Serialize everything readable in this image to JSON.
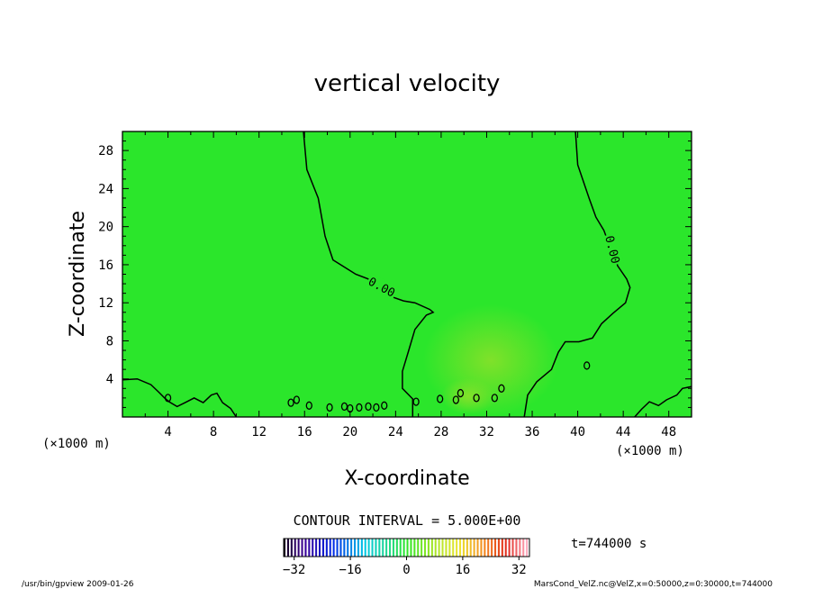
{
  "chart_data": {
    "type": "heatmap",
    "title": "vertical velocity",
    "xlabel": "X-coordinate",
    "ylabel": "Z-coordinate",
    "x_unit": "(×1000 m)",
    "y_unit": "(×1000 m)",
    "xlim": [
      0,
      50
    ],
    "ylim": [
      0,
      30
    ],
    "xticks": [
      4,
      8,
      12,
      16,
      20,
      24,
      28,
      32,
      36,
      40,
      44,
      48
    ],
    "yticks": [
      4,
      8,
      12,
      16,
      20,
      24,
      28
    ],
    "contour_label": "0.00",
    "contour_interval_text": "CONTOUR INTERVAL = 5.000E+00",
    "time_text": "t=744000 s",
    "colorbar": {
      "range": [
        -35,
        35
      ],
      "ticks": [
        -32,
        -16,
        0,
        16,
        32
      ]
    },
    "footer_left": "/usr/bin/gpview   2009-01-26",
    "footer_right": "MarsCond_VelZ.nc@VelZ,x=0:50000,z=0:30000,t=744000",
    "field_background_color": "#2be62b",
    "contour_lines": [
      {
        "name": "left",
        "points": [
          [
            15.9,
            30
          ],
          [
            16.2,
            26
          ],
          [
            17.2,
            23
          ],
          [
            17.8,
            19
          ],
          [
            18.5,
            16.5
          ],
          [
            20.5,
            15
          ],
          [
            21.6,
            14.5
          ],
          [
            22.3,
            13.6
          ],
          [
            23.5,
            12.7
          ],
          [
            24.7,
            12.2
          ],
          [
            25.7,
            12.0
          ],
          [
            27.0,
            11.3
          ],
          [
            27.3,
            11.0
          ],
          [
            26.7,
            10.7
          ],
          [
            25.7,
            9.2
          ],
          [
            25.1,
            6.8
          ],
          [
            24.6,
            4.8
          ],
          [
            24.6,
            3.0
          ],
          [
            25.5,
            1.9
          ],
          [
            25.5,
            0
          ]
        ]
      },
      {
        "name": "right",
        "points": [
          [
            39.8,
            30
          ],
          [
            40.0,
            26.5
          ],
          [
            41.0,
            23.0
          ],
          [
            41.6,
            21.0
          ],
          [
            42.3,
            19.6
          ],
          [
            42.7,
            18.3
          ],
          [
            43.3,
            17.0
          ],
          [
            43.5,
            15.9
          ],
          [
            44.3,
            14.5
          ],
          [
            44.6,
            13.6
          ],
          [
            44.2,
            12.0
          ],
          [
            43.1,
            10.9
          ],
          [
            42.1,
            9.8
          ],
          [
            41.3,
            8.3
          ],
          [
            40.1,
            7.9
          ],
          [
            38.9,
            7.9
          ],
          [
            38.3,
            6.8
          ],
          [
            37.7,
            5.0
          ],
          [
            36.4,
            3.7
          ],
          [
            35.6,
            2.3
          ],
          [
            35.3,
            0
          ]
        ]
      },
      {
        "name": "bottom-left",
        "points": [
          [
            0,
            3.9
          ],
          [
            1.3,
            4.0
          ],
          [
            2.5,
            3.4
          ],
          [
            3.2,
            2.6
          ],
          [
            3.7,
            2.0
          ],
          [
            4.1,
            1.6
          ],
          [
            4.8,
            1.1
          ],
          [
            5.5,
            1.5
          ],
          [
            6.3,
            2.0
          ],
          [
            7.1,
            1.5
          ],
          [
            7.8,
            2.3
          ],
          [
            8.3,
            2.5
          ],
          [
            8.8,
            1.5
          ],
          [
            9.5,
            0.9
          ],
          [
            10.0,
            0
          ]
        ]
      },
      {
        "name": "bottom-right",
        "points": [
          [
            50,
            3.2
          ],
          [
            49.2,
            3.0
          ],
          [
            48.7,
            2.3
          ],
          [
            47.8,
            1.8
          ],
          [
            47.1,
            1.2
          ],
          [
            46.3,
            1.6
          ],
          [
            45.6,
            0.8
          ],
          [
            45.0,
            0
          ]
        ]
      }
    ],
    "small_contours": [
      [
        4.0,
        2.0
      ],
      [
        14.8,
        1.5
      ],
      [
        15.3,
        1.8
      ],
      [
        16.4,
        1.2
      ],
      [
        18.2,
        1.0
      ],
      [
        19.5,
        1.1
      ],
      [
        20.0,
        0.9
      ],
      [
        20.8,
        1.0
      ],
      [
        21.6,
        1.1
      ],
      [
        22.3,
        1.0
      ],
      [
        23.0,
        1.2
      ],
      [
        25.8,
        1.6
      ],
      [
        27.9,
        1.9
      ],
      [
        29.3,
        1.8
      ],
      [
        29.7,
        2.5
      ],
      [
        31.1,
        2.0
      ],
      [
        32.7,
        2.0
      ],
      [
        33.3,
        3.0
      ],
      [
        40.8,
        5.4
      ]
    ]
  }
}
